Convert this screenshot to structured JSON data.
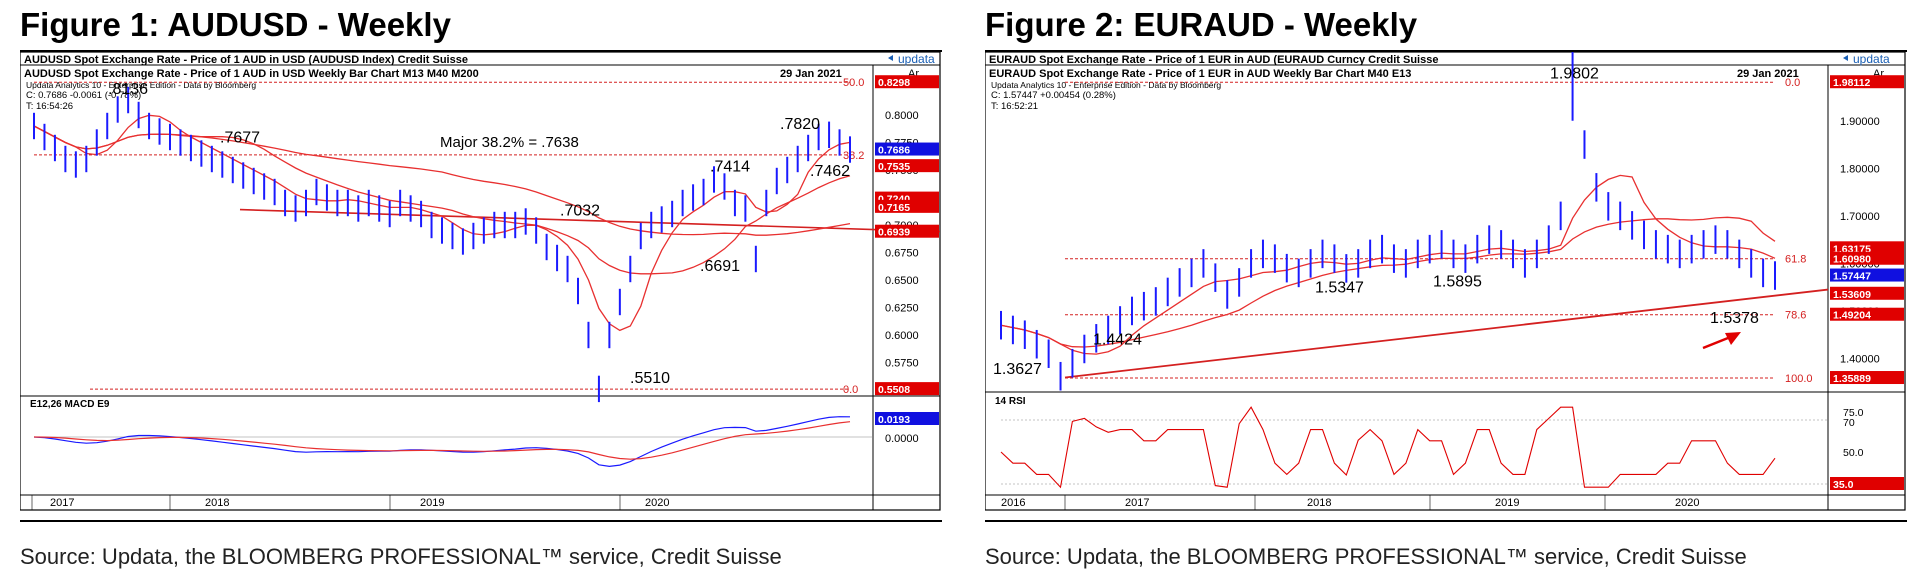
{
  "figures": [
    {
      "title": "Figure 1: AUDUSD - Weekly",
      "source": "Source: Updata, the BLOOMBERG PROFESSIONAL™ service, Credit Suisse",
      "header": "AUDUSD Spot Exchange Rate - Price of 1 AUD in USD (AUDUSD Index)  Credit Suisse",
      "brand": "updata",
      "ar": "Ar",
      "subtitle": "AUDUSD Spot Exchange Rate - Price of 1 AUD in USD Weekly Bar Chart  M13      M40      M200",
      "date": "29 Jan 2021",
      "info1": "Updata Analytics 10 - Enterprise Edition - Data by Bloomberg",
      "info2": "C: 0.7686  -0.0061 (-0.78%)",
      "info3": "T: 16:54:26",
      "panel2_label": "E12,26 MACD     E9",
      "annotations": [
        ".8136",
        ".7677",
        "Major 38.2%  = .7638",
        ".7820",
        ".7414",
        ".7462",
        ".7032",
        ".6691",
        ".5510"
      ],
      "fib_labels": [
        "50.0",
        "38.2",
        "0.0"
      ],
      "price_tags": [
        "0.8298",
        "0.7686",
        "0.7535",
        "0.7240",
        "0.7165",
        "0.6939",
        "0.5508",
        "0.0193"
      ],
      "macd_tick": "0.0000",
      "x_labels": [
        "2017",
        "2018",
        "2019",
        "2020"
      ],
      "colors": {
        "bars": "#1a1aff",
        "ma": "#e83030",
        "trend": "#d42020",
        "tag_red": "#e00000",
        "tag_blue": "#1010e0"
      },
      "chart_data": {
        "type": "line",
        "title": "AUDUSD Spot Exchange Rate - Price of 1 AUD in USD Weekly Bar Chart",
        "x_labels": [
          "2017",
          "2018",
          "2019",
          "2020"
        ],
        "ylim": [
          0.55,
          0.83
        ],
        "y_ticks": [
          "0.8000",
          "0.7750",
          "0.7500",
          "0.7250",
          "0.7000",
          "0.6750",
          "0.6500",
          "0.6250",
          "0.6000",
          "0.5750",
          "0.5500"
        ],
        "y_tick_values": [
          0.8,
          0.775,
          0.75,
          0.725,
          0.7,
          0.675,
          0.65,
          0.625,
          0.6,
          0.575,
          0.55
        ],
        "series": [
          {
            "name": "AUDUSD",
            "x": [
              0,
              3,
              6,
              9,
              12,
              15,
              18,
              21,
              24,
              27,
              30,
              33,
              36,
              39,
              42,
              45,
              48,
              51,
              54,
              57,
              60,
              63,
              66,
              69,
              72,
              75,
              78,
              81,
              84,
              87,
              90,
              93,
              96,
              99,
              102,
              105,
              108,
              111,
              114,
              117,
              120,
              123,
              126,
              129,
              132,
              135,
              138,
              141,
              144,
              147,
              150,
              153,
              156,
              159,
              162,
              165,
              168,
              171,
              174,
              177,
              180,
              183,
              186,
              189,
              192,
              195,
              198,
              201,
              204,
              207,
              210,
              213,
              216,
              219,
              222,
              225,
              228,
              231,
              234
            ],
            "values": [
              0.79,
              0.78,
              0.77,
              0.76,
              0.755,
              0.76,
              0.775,
              0.79,
              0.805,
              0.8136,
              0.8,
              0.79,
              0.785,
              0.78,
              0.775,
              0.77,
              0.765,
              0.76,
              0.755,
              0.75,
              0.745,
              0.74,
              0.735,
              0.73,
              0.72,
              0.715,
              0.72,
              0.73,
              0.725,
              0.72,
              0.72,
              0.715,
              0.72,
              0.715,
              0.71,
              0.72,
              0.715,
              0.71,
              0.7,
              0.695,
              0.69,
              0.685,
              0.69,
              0.695,
              0.7,
              0.7,
              0.7,
              0.7032,
              0.695,
              0.68,
              0.67,
              0.66,
              0.64,
              0.6,
              0.551,
              0.6,
              0.63,
              0.66,
              0.69,
              0.7,
              0.705,
              0.71,
              0.72,
              0.725,
              0.73,
              0.7414,
              0.735,
              0.72,
              0.715,
              0.6691,
              0.72,
              0.74,
              0.75,
              0.76,
              0.77,
              0.78,
              0.782,
              0.775,
              0.7686
            ]
          },
          {
            "name": "M13",
            "values": []
          },
          {
            "name": "M40",
            "values": []
          },
          {
            "name": "M200",
            "values": []
          }
        ],
        "levels": {
          "fib_50": 0.8298,
          "fib_38_2": 0.7638,
          "fib_0": 0.5508
        }
      }
    },
    {
      "title": "Figure 2: EURAUD - Weekly",
      "source": "Source: Updata, the BLOOMBERG PROFESSIONAL™ service, Credit Suisse",
      "header": "EURAUD Spot Exchange Rate - Price of 1 EUR in AUD (EURAUD Curncy  Credit Suisse",
      "brand": "updata",
      "ar": "Ar",
      "subtitle": "EURAUD Spot Exchange Rate - Price of 1 EUR in AUD Weekly Bar Chart  M40      E13",
      "date": "29 Jan 2021",
      "info1": "Updata Analytics 10 - Enterprise Edition - Data by Bloomberg",
      "info2": "C: 1.57447  +0.00454 (0.28%)",
      "info3": "T: 16:52:21",
      "panel2_label": "14 RSI",
      "annotations": [
        "1.9802",
        "1.3627",
        "1.4424",
        "1.5347",
        "1.5895",
        "1.5378"
      ],
      "fib_labels": [
        "0.0",
        "61.8",
        "78.6",
        "100.0"
      ],
      "price_tags": [
        "1.98112",
        "1.63175",
        "1.60980",
        "1.57447",
        "1.53609",
        "1.49204",
        "1.35889",
        "35.0"
      ],
      "rsi_ticks": [
        "75.0",
        "70",
        "50.0"
      ],
      "x_labels": [
        "2016",
        "2017",
        "2018",
        "2019",
        "2020"
      ],
      "colors": {
        "bars": "#1a1aff",
        "ma": "#e83030",
        "trend": "#d42020",
        "tag_red": "#e00000",
        "tag_blue": "#1010e0"
      },
      "chart_data": {
        "type": "line",
        "title": "EURAUD Spot Exchange Rate - Price of 1 EUR in AUD Weekly Bar Chart",
        "x_labels": [
          "2016",
          "2017",
          "2018",
          "2019",
          "2020"
        ],
        "ylim": [
          1.34,
          1.99
        ],
        "y_ticks": [
          "1.90000",
          "1.80000",
          "1.70000",
          "1.60000",
          "1.50000",
          "1.40000"
        ],
        "y_tick_values": [
          1.9,
          1.8,
          1.7,
          1.6,
          1.5,
          1.4
        ],
        "series": [
          {
            "name": "EURAUD",
            "x": [
              0,
              4,
              8,
              12,
              16,
              20,
              24,
              28,
              32,
              36,
              40,
              44,
              48,
              52,
              56,
              60,
              64,
              68,
              72,
              76,
              80,
              84,
              88,
              92,
              96,
              100,
              104,
              108,
              112,
              116,
              120,
              124,
              128,
              132,
              136,
              140,
              144,
              148,
              152,
              156,
              160,
              164,
              168,
              172,
              176,
              180,
              184,
              188,
              192,
              196,
              200,
              204,
              208,
              212,
              216,
              220,
              224,
              228,
              232,
              236,
              240,
              244,
              248,
              252,
              256,
              260
            ],
            "values": [
              1.47,
              1.46,
              1.45,
              1.43,
              1.41,
              1.3627,
              1.39,
              1.42,
              1.4424,
              1.46,
              1.48,
              1.5,
              1.51,
              1.52,
              1.54,
              1.56,
              1.58,
              1.6,
              1.57,
              1.5347,
              1.56,
              1.6,
              1.62,
              1.61,
              1.59,
              1.58,
              1.6,
              1.62,
              1.61,
              1.5895,
              1.6,
              1.62,
              1.63,
              1.61,
              1.6,
              1.62,
              1.63,
              1.64,
              1.62,
              1.61,
              1.63,
              1.65,
              1.64,
              1.62,
              1.6,
              1.62,
              1.65,
              1.7,
              1.9802,
              1.85,
              1.76,
              1.72,
              1.7,
              1.68,
              1.66,
              1.64,
              1.63,
              1.62,
              1.63,
              1.64,
              1.65,
              1.64,
              1.62,
              1.6,
              1.58,
              1.57447
            ]
          },
          {
            "name": "M40",
            "values": []
          },
          {
            "name": "E13",
            "values": []
          }
        ],
        "levels": {
          "fib_0": 1.98112,
          "fib_61_8": 1.6098,
          "fib_78_6": 1.49204,
          "fib_100": 1.35889
        }
      }
    }
  ]
}
